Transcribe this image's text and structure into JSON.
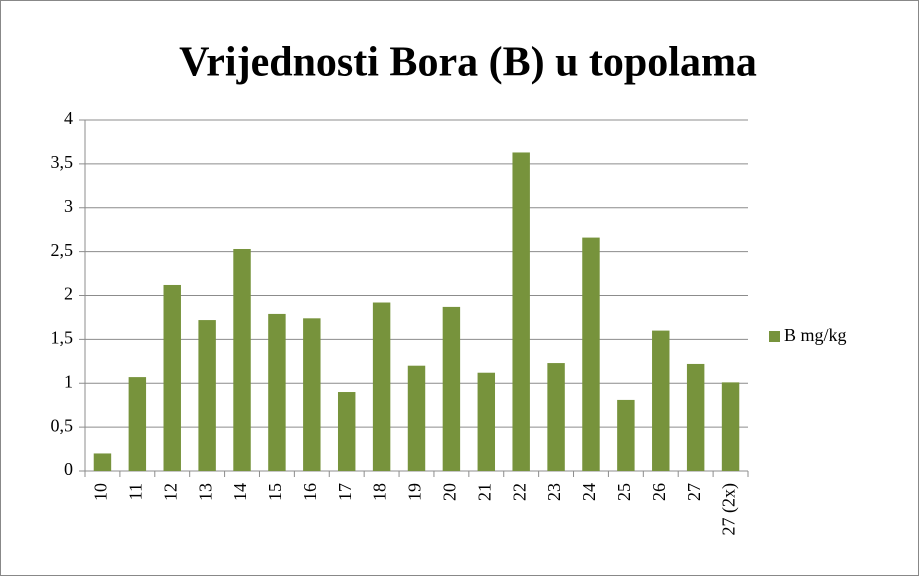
{
  "chart_data": {
    "type": "bar",
    "title": "Vrijednosti Bora (B) u topolama",
    "categories": [
      "10",
      "11",
      "12",
      "13",
      "14",
      "15",
      "16",
      "17",
      "18",
      "19",
      "20",
      "21",
      "22",
      "23",
      "24",
      "25",
      "26",
      "27",
      "27 (2x)"
    ],
    "series": [
      {
        "name": "B mg/kg",
        "color": "#77933c",
        "values": [
          0.2,
          1.07,
          2.12,
          1.72,
          2.53,
          1.79,
          1.74,
          0.9,
          1.92,
          1.2,
          1.87,
          1.12,
          3.63,
          1.23,
          2.66,
          0.81,
          1.6,
          1.22,
          1.01
        ]
      }
    ],
    "ylim": [
      0,
      4
    ],
    "yticks": [
      0,
      {
        "value": 0.5,
        "label": "0,5"
      },
      1,
      {
        "value": 1.5,
        "label": "1,5"
      },
      2,
      {
        "value": 2.5,
        "label": "2,5"
      },
      3,
      {
        "value": 3.5,
        "label": "3,5"
      },
      4
    ],
    "grid": true,
    "legend": "right"
  }
}
